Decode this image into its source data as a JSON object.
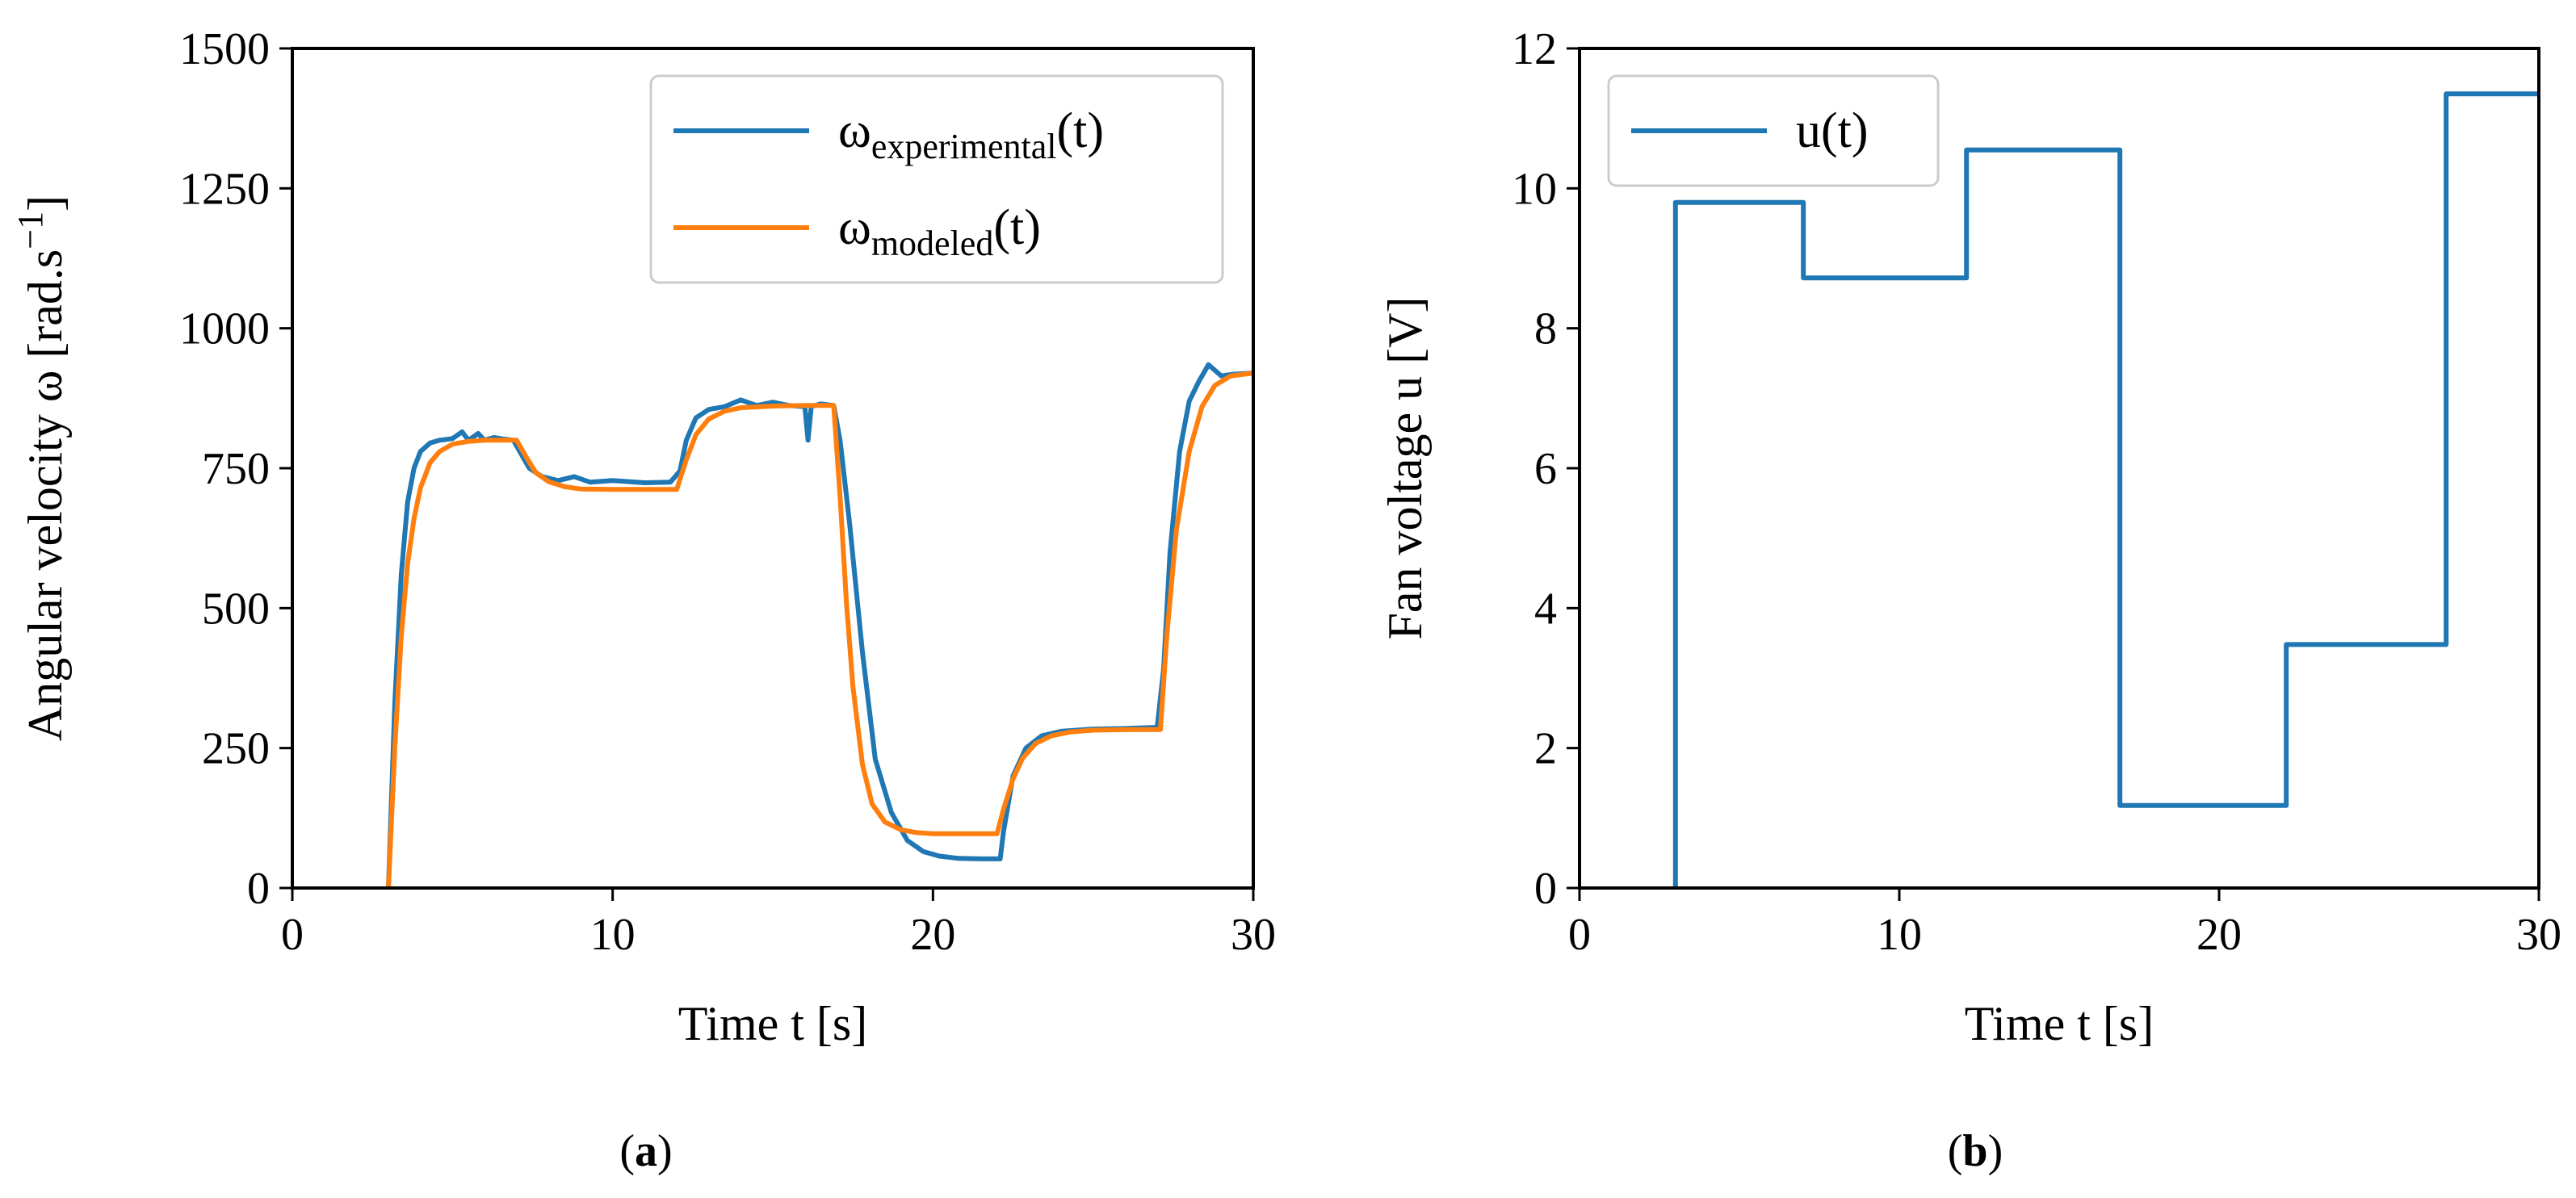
{
  "colors": {
    "experimental": "#1f77b4",
    "modeled": "#ff7f0e",
    "axis": "#000000"
  },
  "chart_data": [
    {
      "id": "a",
      "type": "line",
      "caption": {
        "open": "(",
        "letter": "a",
        "close": ")"
      },
      "xlabel": "Time t [s]",
      "ylabel": {
        "main": "Angular velocity ω [rad.s",
        "sup": "−1",
        "end": "]"
      },
      "xlim": [
        0,
        30
      ],
      "ylim": [
        0,
        1500
      ],
      "xticks": [
        0,
        10,
        20,
        30
      ],
      "xtick_labels": [
        "0",
        "10",
        "20",
        "30"
      ],
      "yticks": [
        0,
        250,
        500,
        750,
        1000,
        1250,
        1500
      ],
      "ytick_labels": [
        "0",
        "250",
        "500",
        "750",
        "1000",
        "1250",
        "1500"
      ],
      "legend_position": "top-right",
      "series": [
        {
          "name": "ω_experimental(t)",
          "legend": {
            "base": "ω",
            "sub": "experimental",
            "arg": "(t)"
          },
          "color_key": "experimental",
          "x": [
            3.0,
            3.2,
            3.4,
            3.6,
            3.8,
            4.0,
            4.3,
            4.6,
            5.0,
            5.3,
            5.5,
            5.8,
            6.0,
            6.3,
            6.6,
            6.9,
            7.1,
            7.4,
            7.8,
            8.3,
            8.8,
            9.3,
            10.0,
            11.0,
            11.8,
            12.1,
            12.3,
            12.6,
            13.0,
            13.5,
            14.0,
            14.5,
            15.0,
            15.5,
            16.0,
            16.1,
            16.2,
            16.5,
            16.9,
            17.1,
            17.4,
            17.8,
            18.2,
            18.7,
            19.2,
            19.7,
            20.2,
            20.8,
            21.5,
            22.1,
            22.2,
            22.5,
            22.9,
            23.4,
            24.0,
            24.5,
            25.0,
            26.0,
            27.0,
            27.2,
            27.4,
            27.7,
            28.0,
            28.3,
            28.6,
            29.0,
            29.4,
            30.0
          ],
          "y": [
            0,
            330,
            560,
            690,
            750,
            780,
            795,
            800,
            803,
            815,
            800,
            812,
            800,
            805,
            802,
            800,
            780,
            750,
            735,
            728,
            735,
            725,
            728,
            724,
            725,
            745,
            800,
            840,
            855,
            860,
            872,
            862,
            868,
            862,
            860,
            800,
            860,
            865,
            862,
            800,
            650,
            420,
            230,
            135,
            85,
            65,
            57,
            53,
            52,
            52,
            100,
            200,
            250,
            272,
            280,
            282,
            284,
            285,
            287,
            390,
            600,
            780,
            870,
            905,
            935,
            915,
            918,
            920
          ]
        },
        {
          "name": "ω_modeled(t)",
          "legend": {
            "base": "ω",
            "sub": "modeled",
            "arg": "(t)"
          },
          "color_key": "modeled",
          "x": [
            3.0,
            3.2,
            3.4,
            3.6,
            3.8,
            4.0,
            4.3,
            4.6,
            5.0,
            5.5,
            6.0,
            7.0,
            7.3,
            7.6,
            8.0,
            8.5,
            9.0,
            10.0,
            11.0,
            12.0,
            12.3,
            12.6,
            13.0,
            13.5,
            14.0,
            15.0,
            16.0,
            16.9,
            17.1,
            17.3,
            17.5,
            17.8,
            18.1,
            18.5,
            19.0,
            19.5,
            20.0,
            21.0,
            22.0,
            22.2,
            22.5,
            22.8,
            23.2,
            23.7,
            24.3,
            25.0,
            26.0,
            27.1,
            27.3,
            27.6,
            28.0,
            28.4,
            28.8,
            29.3,
            30.0
          ],
          "y": [
            0,
            250,
            450,
            580,
            660,
            715,
            760,
            780,
            793,
            798,
            800,
            800,
            770,
            742,
            726,
            717,
            713,
            712,
            712,
            712,
            765,
            810,
            838,
            852,
            858,
            861,
            862,
            862,
            700,
            510,
            360,
            220,
            150,
            118,
            104,
            99,
            97,
            97,
            97,
            140,
            195,
            232,
            258,
            272,
            279,
            282,
            283,
            283,
            450,
            640,
            780,
            860,
            898,
            915,
            920
          ]
        }
      ]
    },
    {
      "id": "b",
      "type": "line",
      "caption": {
        "open": "(",
        "letter": "b",
        "close": ")"
      },
      "xlabel": "Time t [s]",
      "ylabel": "Fan voltage u [V]",
      "xlim": [
        0,
        30
      ],
      "ylim": [
        0,
        12
      ],
      "xticks": [
        0,
        10,
        20,
        30
      ],
      "xtick_labels": [
        "0",
        "10",
        "20",
        "30"
      ],
      "yticks": [
        0,
        2,
        4,
        6,
        8,
        10,
        12
      ],
      "ytick_labels": [
        "0",
        "2",
        "4",
        "6",
        "8",
        "10",
        "12"
      ],
      "legend_position": "top-left",
      "series": [
        {
          "name": "u(t)",
          "legend": {
            "base": "u(t)",
            "sub": "",
            "arg": ""
          },
          "color_key": "experimental",
          "x": [
            3.0,
            3.0,
            7.0,
            7.0,
            12.1,
            12.1,
            16.9,
            16.9,
            22.1,
            22.1,
            27.1,
            27.1,
            30.0
          ],
          "y": [
            0,
            9.8,
            9.8,
            8.72,
            8.72,
            10.55,
            10.55,
            1.18,
            1.18,
            3.48,
            3.48,
            11.35,
            11.35
          ]
        }
      ]
    }
  ]
}
